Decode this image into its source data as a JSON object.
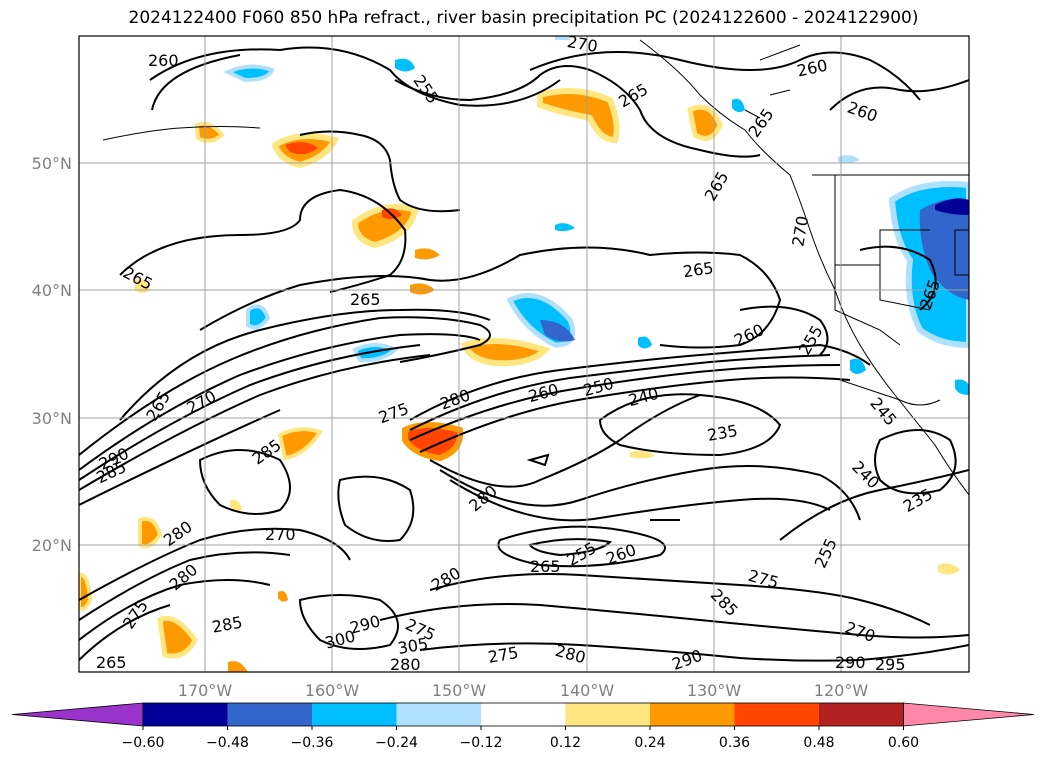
{
  "title": "2024122400 F060 850 hPa refract., river basin precipitation PC (2024122600 - 2024122900)",
  "map": {
    "lat_labels": [
      "50°N",
      "40°N",
      "30°N",
      "20°N"
    ],
    "lon_labels": [
      "170°W",
      "160°W",
      "150°W",
      "140°W",
      "130°W",
      "120°W"
    ],
    "contour_labels": [
      "260",
      "265",
      "265",
      "270",
      "265",
      "260",
      "255",
      "260",
      "265",
      "265",
      "265",
      "265",
      "270",
      "260",
      "255",
      "265",
      "270",
      "275",
      "285",
      "280",
      "260",
      "250",
      "240",
      "235",
      "245",
      "240",
      "235",
      "285",
      "290",
      "270",
      "280",
      "280",
      "265",
      "255",
      "260",
      "255",
      "275",
      "285",
      "270",
      "290",
      "295",
      "285",
      "275",
      "280",
      "290",
      "300",
      "305",
      "275",
      "280",
      "275",
      "280",
      "280",
      "290",
      "265"
    ],
    "colors": {
      "contour": "#000000",
      "grid": "#a0a0a0",
      "coast": "#000000"
    }
  },
  "colorbar": {
    "ticks": [
      "−0.60",
      "−0.48",
      "−0.36",
      "−0.24",
      "−0.12",
      "0.12",
      "0.24",
      "0.36",
      "0.48",
      "0.60"
    ],
    "colors": [
      "#9933cc",
      "#000099",
      "#3366cc",
      "#00bfff",
      "#b0e0ff",
      "#ffffff",
      "#ffe680",
      "#ff9900",
      "#ff4500",
      "#b22222",
      "#ff88aa"
    ]
  }
}
